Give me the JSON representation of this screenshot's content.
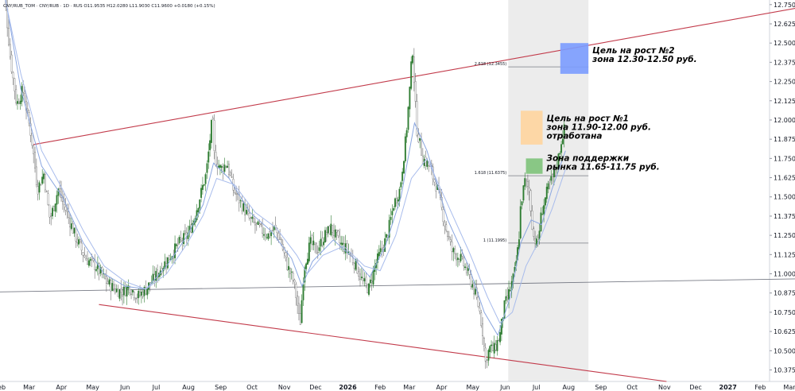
{
  "header": {
    "text": "CNY/RUB_TOM · CNY/RUB · 1D · RUS   O11.9535  H12.0280  L11.9030  C11.9600  +0.0180 (+0.15%)"
  },
  "chart_data": {
    "type": "candlestick",
    "symbol": "CNY/RUB_TOM",
    "timeframe": "1D",
    "ohlc": {
      "open": 11.9535,
      "high": 12.028,
      "low": 11.903,
      "close": 11.96,
      "change": "+0.0180",
      "change_pct": "+0.15%"
    },
    "ylim": [
      10.3,
      12.78
    ],
    "y_ticks": [
      12.75,
      12.625,
      12.5,
      12.375,
      12.25,
      12.125,
      12.0,
      11.875,
      11.75,
      11.625,
      11.5,
      11.375,
      11.25,
      11.125,
      11.0,
      10.875,
      10.75,
      10.625,
      10.5,
      10.375
    ],
    "y_tick_labels": [
      "12.7500",
      "12.6250",
      "12.5000",
      "12.3750",
      "12.2500",
      "12.1250",
      "12.0000",
      "11.8750",
      "11.7500",
      "11.6250",
      "11.5000",
      "11.3750",
      "11.2500",
      "11.1250",
      "11.0000",
      "10.8750",
      "10.7500",
      "10.6250",
      "10.5000",
      "10.3750"
    ],
    "x_ticks": [
      {
        "label": "Feb",
        "t": 0,
        "bold": false
      },
      {
        "label": "Mar",
        "t": 28,
        "bold": false
      },
      {
        "label": "Apr",
        "t": 59,
        "bold": false
      },
      {
        "label": "May",
        "t": 89,
        "bold": false
      },
      {
        "label": "Jun",
        "t": 120,
        "bold": false
      },
      {
        "label": "Jul",
        "t": 150,
        "bold": false
      },
      {
        "label": "Aug",
        "t": 181,
        "bold": false
      },
      {
        "label": "Sep",
        "t": 212,
        "bold": false
      },
      {
        "label": "Oct",
        "t": 242,
        "bold": false
      },
      {
        "label": "Nov",
        "t": 273,
        "bold": false
      },
      {
        "label": "Dec",
        "t": 303,
        "bold": false
      },
      {
        "label": "2026",
        "t": 334,
        "bold": true
      },
      {
        "label": "Feb",
        "t": 365,
        "bold": false
      },
      {
        "label": "Mar",
        "t": 393,
        "bold": false
      },
      {
        "label": "Apr",
        "t": 424,
        "bold": false
      },
      {
        "label": "May",
        "t": 454,
        "bold": false
      },
      {
        "label": "Jun",
        "t": 485,
        "bold": false
      },
      {
        "label": "Jul",
        "t": 515,
        "bold": false
      },
      {
        "label": "Aug",
        "t": 546,
        "bold": false
      },
      {
        "label": "Sep",
        "t": 577,
        "bold": false
      },
      {
        "label": "Oct",
        "t": 607,
        "bold": false
      },
      {
        "label": "Nov",
        "t": 638,
        "bold": false
      },
      {
        "label": "Dec",
        "t": 668,
        "bold": false
      },
      {
        "label": "2027",
        "t": 699,
        "bold": true
      },
      {
        "label": "Feb",
        "t": 730,
        "bold": false
      },
      {
        "label": "Mar",
        "t": 758,
        "bold": false
      }
    ],
    "series_path": [
      [
        0,
        13.05
      ],
      [
        6,
        12.7
      ],
      [
        10,
        12.4
      ],
      [
        16,
        12.1
      ],
      [
        22,
        12.2
      ],
      [
        30,
        11.9
      ],
      [
        36,
        11.55
      ],
      [
        42,
        11.65
      ],
      [
        48,
        11.35
      ],
      [
        56,
        11.55
      ],
      [
        64,
        11.4
      ],
      [
        72,
        11.25
      ],
      [
        82,
        11.1
      ],
      [
        92,
        11.05
      ],
      [
        102,
        10.95
      ],
      [
        110,
        10.9
      ],
      [
        118,
        10.88
      ],
      [
        124,
        10.92
      ],
      [
        132,
        10.85
      ],
      [
        140,
        10.9
      ],
      [
        148,
        10.97
      ],
      [
        156,
        11.05
      ],
      [
        164,
        11.12
      ],
      [
        172,
        11.2
      ],
      [
        180,
        11.25
      ],
      [
        186,
        11.35
      ],
      [
        192,
        11.5
      ],
      [
        198,
        11.65
      ],
      [
        202,
        11.9
      ],
      [
        204,
        12.02
      ],
      [
        206,
        11.75
      ],
      [
        212,
        11.68
      ],
      [
        218,
        11.72
      ],
      [
        224,
        11.55
      ],
      [
        232,
        11.45
      ],
      [
        240,
        11.35
      ],
      [
        248,
        11.3
      ],
      [
        258,
        11.25
      ],
      [
        264,
        11.3
      ],
      [
        270,
        11.2
      ],
      [
        276,
        11.05
      ],
      [
        282,
        10.95
      ],
      [
        286,
        10.78
      ],
      [
        288,
        10.65
      ],
      [
        292,
        11.05
      ],
      [
        298,
        11.2
      ],
      [
        304,
        11.15
      ],
      [
        312,
        11.25
      ],
      [
        318,
        11.3
      ],
      [
        326,
        11.2
      ],
      [
        334,
        11.15
      ],
      [
        342,
        11.05
      ],
      [
        348,
        10.95
      ],
      [
        354,
        10.9
      ],
      [
        360,
        11.05
      ],
      [
        366,
        11.15
      ],
      [
        372,
        11.25
      ],
      [
        378,
        11.45
      ],
      [
        384,
        11.55
      ],
      [
        390,
        11.9
      ],
      [
        394,
        12.25
      ],
      [
        396,
        12.48
      ],
      [
        400,
        11.95
      ],
      [
        406,
        11.75
      ],
      [
        412,
        11.7
      ],
      [
        420,
        11.55
      ],
      [
        428,
        11.3
      ],
      [
        434,
        11.15
      ],
      [
        442,
        11.1
      ],
      [
        448,
        11.02
      ],
      [
        454,
        10.92
      ],
      [
        460,
        10.78
      ],
      [
        464,
        10.6
      ],
      [
        466,
        10.42
      ],
      [
        470,
        10.52
      ],
      [
        474,
        10.5
      ],
      [
        480,
        10.6
      ],
      [
        484,
        10.78
      ],
      [
        490,
        10.9
      ],
      [
        494,
        11.0
      ],
      [
        498,
        11.2
      ],
      [
        500,
        11.45
      ],
      [
        504,
        11.6
      ],
      [
        508,
        11.55
      ],
      [
        512,
        11.25
      ],
      [
        516,
        11.18
      ],
      [
        520,
        11.4
      ],
      [
        526,
        11.55
      ],
      [
        532,
        11.65
      ],
      [
        536,
        11.75
      ],
      [
        540,
        11.9
      ],
      [
        543,
        11.96
      ]
    ],
    "ema_fast_path": [
      [
        0,
        13.0
      ],
      [
        20,
        12.2
      ],
      [
        40,
        11.7
      ],
      [
        60,
        11.5
      ],
      [
        80,
        11.2
      ],
      [
        100,
        11.0
      ],
      [
        120,
        10.92
      ],
      [
        140,
        10.9
      ],
      [
        160,
        11.05
      ],
      [
        180,
        11.25
      ],
      [
        195,
        11.45
      ],
      [
        205,
        11.72
      ],
      [
        220,
        11.62
      ],
      [
        240,
        11.4
      ],
      [
        260,
        11.28
      ],
      [
        280,
        11.1
      ],
      [
        290,
        10.92
      ],
      [
        300,
        11.08
      ],
      [
        320,
        11.22
      ],
      [
        340,
        11.1
      ],
      [
        355,
        10.98
      ],
      [
        370,
        11.18
      ],
      [
        385,
        11.5
      ],
      [
        398,
        11.98
      ],
      [
        410,
        11.8
      ],
      [
        430,
        11.35
      ],
      [
        450,
        11.05
      ],
      [
        465,
        10.75
      ],
      [
        478,
        10.6
      ],
      [
        490,
        10.85
      ],
      [
        500,
        11.2
      ],
      [
        510,
        11.35
      ],
      [
        520,
        11.32
      ],
      [
        530,
        11.55
      ],
      [
        543,
        11.8
      ]
    ],
    "ema_slow_path": [
      [
        0,
        12.95
      ],
      [
        20,
        12.3
      ],
      [
        40,
        11.8
      ],
      [
        60,
        11.55
      ],
      [
        80,
        11.28
      ],
      [
        100,
        11.05
      ],
      [
        120,
        10.95
      ],
      [
        140,
        10.9
      ],
      [
        160,
        11.0
      ],
      [
        180,
        11.2
      ],
      [
        195,
        11.38
      ],
      [
        208,
        11.62
      ],
      [
        225,
        11.58
      ],
      [
        245,
        11.4
      ],
      [
        265,
        11.3
      ],
      [
        285,
        11.12
      ],
      [
        295,
        11.0
      ],
      [
        310,
        11.12
      ],
      [
        330,
        11.18
      ],
      [
        350,
        11.05
      ],
      [
        365,
        11.02
      ],
      [
        380,
        11.25
      ],
      [
        395,
        11.62
      ],
      [
        410,
        11.75
      ],
      [
        430,
        11.45
      ],
      [
        450,
        11.15
      ],
      [
        468,
        10.85
      ],
      [
        480,
        10.68
      ],
      [
        492,
        10.75
      ],
      [
        505,
        11.05
      ],
      [
        518,
        11.22
      ],
      [
        530,
        11.42
      ],
      [
        543,
        11.68
      ]
    ],
    "annotations": [
      {
        "type": "trendline",
        "name": "upper-trend",
        "color": "#c23a4a",
        "points": [
          [
            32,
            11.84
          ],
          [
            800,
            12.77
          ]
        ]
      },
      {
        "type": "trendline",
        "name": "lower-trend",
        "color": "#c23a4a",
        "points": [
          [
            95,
            10.8
          ],
          [
            640,
            10.3
          ]
        ]
      },
      {
        "type": "trendline",
        "name": "horizontal-support",
        "color": "#787b86",
        "points": [
          [
            -20,
            10.88
          ],
          [
            790,
            10.97
          ]
        ]
      },
      {
        "type": "fib",
        "name": "fib-2618",
        "label": "2.618 (12.3455)",
        "value": 12.3455,
        "t0": 488,
        "t1": 565
      },
      {
        "type": "fib",
        "name": "fib-1618",
        "label": "1.618 (11.6375)",
        "value": 11.6375,
        "t0": 488,
        "t1": 565
      },
      {
        "type": "fib",
        "name": "fib-1",
        "label": "1 (11.1995)",
        "value": 11.1995,
        "t0": 488,
        "t1": 565
      },
      {
        "type": "shaded",
        "name": "forecast-region",
        "t0": 488,
        "t1": 565,
        "y0": 10.3,
        "y1": 12.78,
        "color": "#ececec"
      }
    ],
    "zones": [
      {
        "name": "target-zone-2",
        "color": "#7b9cff",
        "t0": 538,
        "t1": 565,
        "y0": 12.3,
        "y1": 12.5,
        "text_lines": [
          "Цель на рост №2",
          "зона 12.30-12.50 руб."
        ]
      },
      {
        "name": "target-zone-1",
        "color": "#ffd59e",
        "t0": 500,
        "t1": 521,
        "y0": 11.84,
        "y1": 12.06,
        "text_lines": [
          "Цель на рост №1",
          "зона 11.90-12.00 руб.",
          "отработана"
        ]
      },
      {
        "name": "support-zone",
        "color": "#7ec37a",
        "t0": 505,
        "t1": 521,
        "y0": 11.65,
        "y1": 11.75,
        "text_lines": [
          "Зона поддержки",
          "рынка 11.65-11.75 руб."
        ]
      }
    ]
  }
}
